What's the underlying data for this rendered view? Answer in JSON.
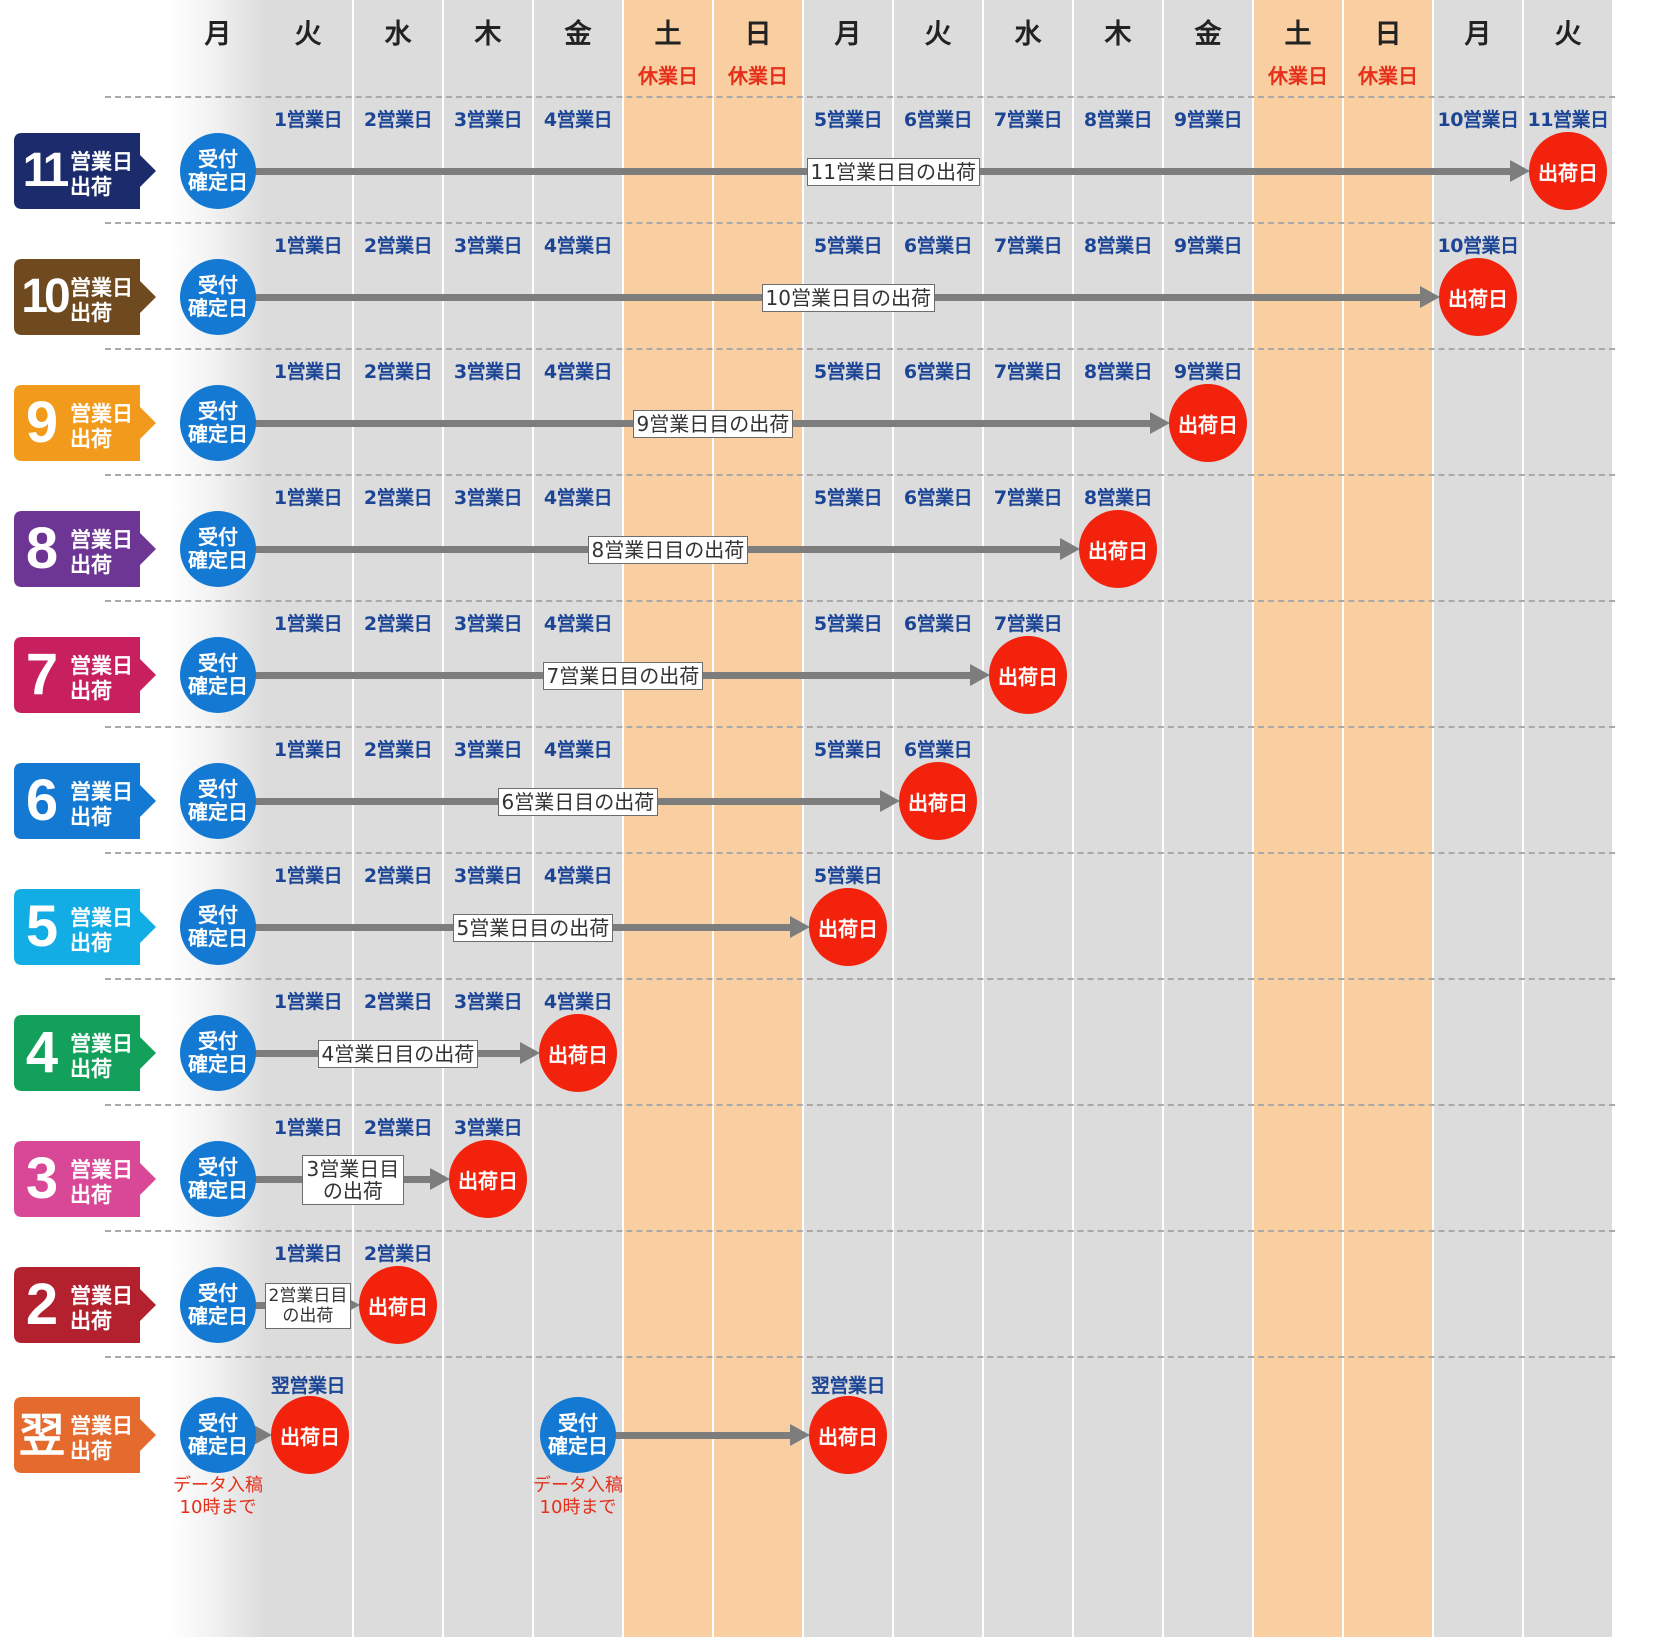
{
  "columns": [
    {
      "day": "月",
      "holiday": ""
    },
    {
      "day": "火",
      "holiday": ""
    },
    {
      "day": "水",
      "holiday": ""
    },
    {
      "day": "木",
      "holiday": ""
    },
    {
      "day": "金",
      "holiday": ""
    },
    {
      "day": "土",
      "holiday": "休業日"
    },
    {
      "day": "日",
      "holiday": "休業日"
    },
    {
      "day": "月",
      "holiday": ""
    },
    {
      "day": "火",
      "holiday": ""
    },
    {
      "day": "水",
      "holiday": ""
    },
    {
      "day": "木",
      "holiday": ""
    },
    {
      "day": "金",
      "holiday": ""
    },
    {
      "day": "土",
      "holiday": "休業日"
    },
    {
      "day": "日",
      "holiday": "休業日"
    },
    {
      "day": "月",
      "holiday": ""
    },
    {
      "day": "火",
      "holiday": ""
    }
  ],
  "colors": {
    "weekday_column": "#dcdcdc",
    "holiday_column": "#f9cfa2",
    "accept_circle": "#1479d2",
    "ship_circle": "#f2220d",
    "business_day_text": "#1c4596",
    "holiday_text": "#e5311b"
  },
  "accept_label": [
    "受付",
    "確定日"
  ],
  "ship_label": "出荷日",
  "badge_lines": [
    "営業日",
    "出荷"
  ],
  "rows": [
    {
      "num": "11",
      "color": "#1b2b6b",
      "ship_col": 15,
      "label": [
        "11営業日目の出荷"
      ],
      "bdays": [
        [
          1,
          "1営業日"
        ],
        [
          2,
          "2営業日"
        ],
        [
          3,
          "3営業日"
        ],
        [
          4,
          "4営業日"
        ],
        [
          7,
          "5営業日"
        ],
        [
          8,
          "6営業日"
        ],
        [
          9,
          "7営業日"
        ],
        [
          10,
          "8営業日"
        ],
        [
          11,
          "9営業日"
        ],
        [
          14,
          "10営業日"
        ],
        [
          15,
          "11営業日"
        ]
      ]
    },
    {
      "num": "10",
      "color": "#6e4a1e",
      "ship_col": 14,
      "label": [
        "10営業日目の出荷"
      ],
      "bdays": [
        [
          1,
          "1営業日"
        ],
        [
          2,
          "2営業日"
        ],
        [
          3,
          "3営業日"
        ],
        [
          4,
          "4営業日"
        ],
        [
          7,
          "5営業日"
        ],
        [
          8,
          "6営業日"
        ],
        [
          9,
          "7営業日"
        ],
        [
          10,
          "8営業日"
        ],
        [
          11,
          "9営業日"
        ],
        [
          14,
          "10営業日"
        ]
      ]
    },
    {
      "num": "9",
      "color": "#f29a1c",
      "ship_col": 11,
      "label": [
        "9営業日目の出荷"
      ],
      "bdays": [
        [
          1,
          "1営業日"
        ],
        [
          2,
          "2営業日"
        ],
        [
          3,
          "3営業日"
        ],
        [
          4,
          "4営業日"
        ],
        [
          7,
          "5営業日"
        ],
        [
          8,
          "6営業日"
        ],
        [
          9,
          "7営業日"
        ],
        [
          10,
          "8営業日"
        ],
        [
          11,
          "9営業日"
        ]
      ]
    },
    {
      "num": "8",
      "color": "#6d3594",
      "ship_col": 10,
      "label": [
        "8営業日目の出荷"
      ],
      "bdays": [
        [
          1,
          "1営業日"
        ],
        [
          2,
          "2営業日"
        ],
        [
          3,
          "3営業日"
        ],
        [
          4,
          "4営業日"
        ],
        [
          7,
          "5営業日"
        ],
        [
          8,
          "6営業日"
        ],
        [
          9,
          "7営業日"
        ],
        [
          10,
          "8営業日"
        ]
      ]
    },
    {
      "num": "7",
      "color": "#c81f5e",
      "ship_col": 9,
      "label": [
        "7営業日目の出荷"
      ],
      "bdays": [
        [
          1,
          "1営業日"
        ],
        [
          2,
          "2営業日"
        ],
        [
          3,
          "3営業日"
        ],
        [
          4,
          "4営業日"
        ],
        [
          7,
          "5営業日"
        ],
        [
          8,
          "6営業日"
        ],
        [
          9,
          "7営業日"
        ]
      ]
    },
    {
      "num": "6",
      "color": "#1479d2",
      "ship_col": 8,
      "label": [
        "6営業日目の出荷"
      ],
      "bdays": [
        [
          1,
          "1営業日"
        ],
        [
          2,
          "2営業日"
        ],
        [
          3,
          "3営業日"
        ],
        [
          4,
          "4営業日"
        ],
        [
          7,
          "5営業日"
        ],
        [
          8,
          "6営業日"
        ]
      ]
    },
    {
      "num": "5",
      "color": "#12ade4",
      "ship_col": 7,
      "label": [
        "5営業日目の出荷"
      ],
      "bdays": [
        [
          1,
          "1営業日"
        ],
        [
          2,
          "2営業日"
        ],
        [
          3,
          "3営業日"
        ],
        [
          4,
          "4営業日"
        ],
        [
          7,
          "5営業日"
        ]
      ]
    },
    {
      "num": "4",
      "color": "#12a05a",
      "ship_col": 4,
      "label": [
        "4営業日目の出荷"
      ],
      "bdays": [
        [
          1,
          "1営業日"
        ],
        [
          2,
          "2営業日"
        ],
        [
          3,
          "3営業日"
        ],
        [
          4,
          "4営業日"
        ]
      ]
    },
    {
      "num": "3",
      "color": "#d94896",
      "ship_col": 3,
      "label": [
        "3営業日目",
        "の出荷"
      ],
      "bdays": [
        [
          1,
          "1営業日"
        ],
        [
          2,
          "2営業日"
        ],
        [
          3,
          "3営業日"
        ]
      ]
    },
    {
      "num": "2",
      "color": "#b3212f",
      "ship_col": 2,
      "label": [
        "2営業日目",
        "の出荷"
      ],
      "bdays": [
        [
          1,
          "1営業日"
        ],
        [
          2,
          "2営業日"
        ]
      ]
    }
  ],
  "next_day_row": {
    "num": "翌",
    "color": "#e46a2d",
    "bdays": [
      [
        1,
        "翌営業日"
      ],
      [
        7,
        "翌営業日"
      ]
    ],
    "note": [
      "データ入稿",
      "10時まで"
    ]
  }
}
